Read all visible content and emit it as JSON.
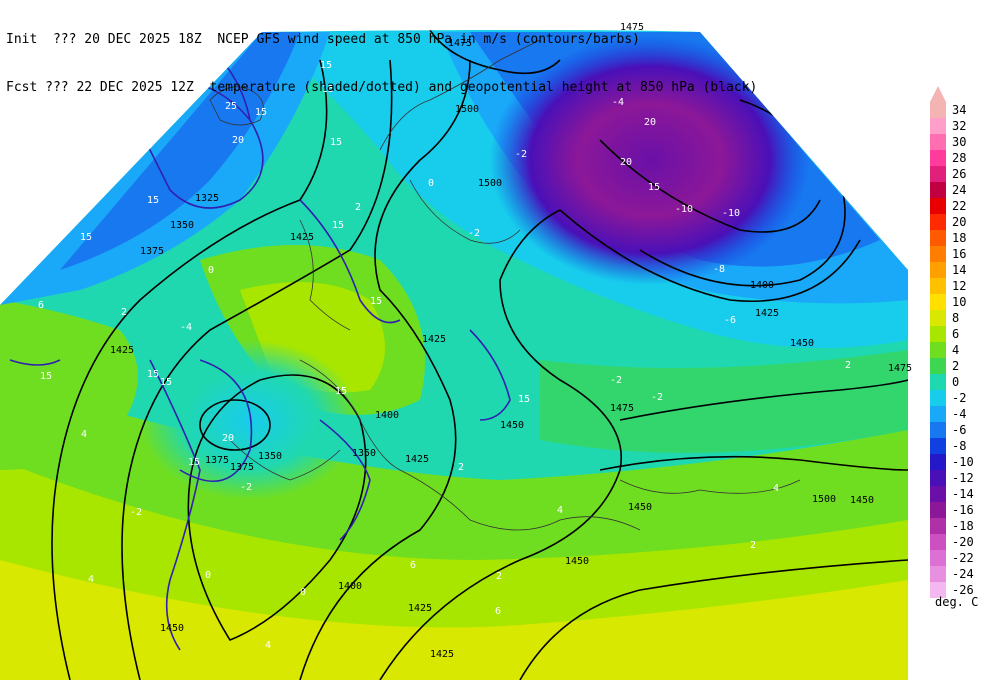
{
  "header": {
    "line1_left": "Init  ??? 20 DEC 2025 18Z",
    "line1_right": "NCEP GFS wind speed at 850 hPa in m/s (contours/barbs)",
    "line2_left": "Fcst ??? 22 DEC 2025 12Z",
    "line2_right": "temperature (shaded/dotted) and geopotential height at 850 hPa (black)"
  },
  "legend": {
    "units": "deg. C",
    "levels": [
      {
        "label": "34",
        "color": "#f4b4b4"
      },
      {
        "label": "32",
        "color": "#ff9ec8"
      },
      {
        "label": "30",
        "color": "#ff6eb0"
      },
      {
        "label": "28",
        "color": "#ff3c9c"
      },
      {
        "label": "26",
        "color": "#e0207a"
      },
      {
        "label": "24",
        "color": "#c00040"
      },
      {
        "label": "22",
        "color": "#e80000"
      },
      {
        "label": "20",
        "color": "#ff2a00"
      },
      {
        "label": "18",
        "color": "#ff5a00"
      },
      {
        "label": "16",
        "color": "#ff7e00"
      },
      {
        "label": "14",
        "color": "#ffa000"
      },
      {
        "label": "12",
        "color": "#ffc000"
      },
      {
        "label": "10",
        "color": "#ffe000"
      },
      {
        "label": "8",
        "color": "#d8e800"
      },
      {
        "label": "6",
        "color": "#a8e600"
      },
      {
        "label": "4",
        "color": "#70de20"
      },
      {
        "label": "2",
        "color": "#3cd650"
      },
      {
        "label": "0",
        "color": "#20d8b0"
      },
      {
        "label": "-2",
        "color": "#18ccec"
      },
      {
        "label": "-4",
        "color": "#1aa8f8"
      },
      {
        "label": "-6",
        "color": "#1878f0"
      },
      {
        "label": "-8",
        "color": "#1040e0"
      },
      {
        "label": "-10",
        "color": "#2418c8"
      },
      {
        "label": "-12",
        "color": "#4a10b8"
      },
      {
        "label": "-14",
        "color": "#6a10a8"
      },
      {
        "label": "-16",
        "color": "#8c1898"
      },
      {
        "label": "-18",
        "color": "#b030a8"
      },
      {
        "label": "-20",
        "color": "#cc50c0"
      },
      {
        "label": "-22",
        "color": "#dc70d4"
      },
      {
        "label": "-24",
        "color": "#e890e0"
      },
      {
        "label": "-26",
        "color": "#f4b8f0"
      }
    ]
  },
  "map": {
    "height_labels": [
      {
        "text": "1475"
      },
      {
        "text": "1500"
      },
      {
        "text": "1500"
      },
      {
        "text": "1325"
      },
      {
        "text": "1350"
      },
      {
        "text": "1375"
      },
      {
        "text": "1425"
      },
      {
        "text": "1425"
      },
      {
        "text": "1400"
      },
      {
        "text": "1375"
      },
      {
        "text": "1350"
      },
      {
        "text": "1350"
      },
      {
        "text": "1375"
      },
      {
        "text": "1425"
      },
      {
        "text": "1450"
      },
      {
        "text": "1400"
      },
      {
        "text": "1425"
      },
      {
        "text": "1450"
      },
      {
        "text": "1425"
      },
      {
        "text": "1450"
      },
      {
        "text": "1450"
      },
      {
        "text": "1475"
      },
      {
        "text": "1475"
      },
      {
        "text": "1500"
      },
      {
        "text": "1400"
      },
      {
        "text": "1425"
      },
      {
        "text": "1450"
      },
      {
        "text": "1475"
      },
      {
        "text": "1425"
      },
      {
        "text": "1450"
      }
    ],
    "wind_labels": [
      {
        "text": "15"
      },
      {
        "text": "20"
      },
      {
        "text": "15"
      },
      {
        "text": "25"
      },
      {
        "text": "15"
      },
      {
        "text": "15"
      },
      {
        "text": "15"
      },
      {
        "text": "15"
      },
      {
        "text": "15"
      },
      {
        "text": "15"
      },
      {
        "text": "15"
      },
      {
        "text": "20"
      },
      {
        "text": "15"
      },
      {
        "text": "15"
      },
      {
        "text": "15"
      },
      {
        "text": "15"
      },
      {
        "text": "20"
      },
      {
        "text": "20"
      },
      {
        "text": "15"
      },
      {
        "text": "15"
      }
    ],
    "temp_labels": [
      {
        "text": "-10"
      },
      {
        "text": "-10"
      },
      {
        "text": "-8"
      },
      {
        "text": "-6"
      },
      {
        "text": "-4"
      },
      {
        "text": "-2"
      },
      {
        "text": "0"
      },
      {
        "text": "2"
      },
      {
        "text": "-2"
      },
      {
        "text": "-2"
      },
      {
        "text": "0"
      },
      {
        "text": "2"
      },
      {
        "text": "4"
      },
      {
        "text": "6"
      },
      {
        "text": "4"
      },
      {
        "text": "2"
      },
      {
        "text": "0"
      },
      {
        "text": "-2"
      },
      {
        "text": "2"
      },
      {
        "text": "4"
      },
      {
        "text": "6"
      },
      {
        "text": "2"
      },
      {
        "text": "4"
      },
      {
        "text": "0"
      },
      {
        "text": "-2"
      },
      {
        "text": "-4"
      },
      {
        "text": "6"
      },
      {
        "text": "4"
      },
      {
        "text": "-2"
      },
      {
        "text": "2"
      }
    ]
  }
}
